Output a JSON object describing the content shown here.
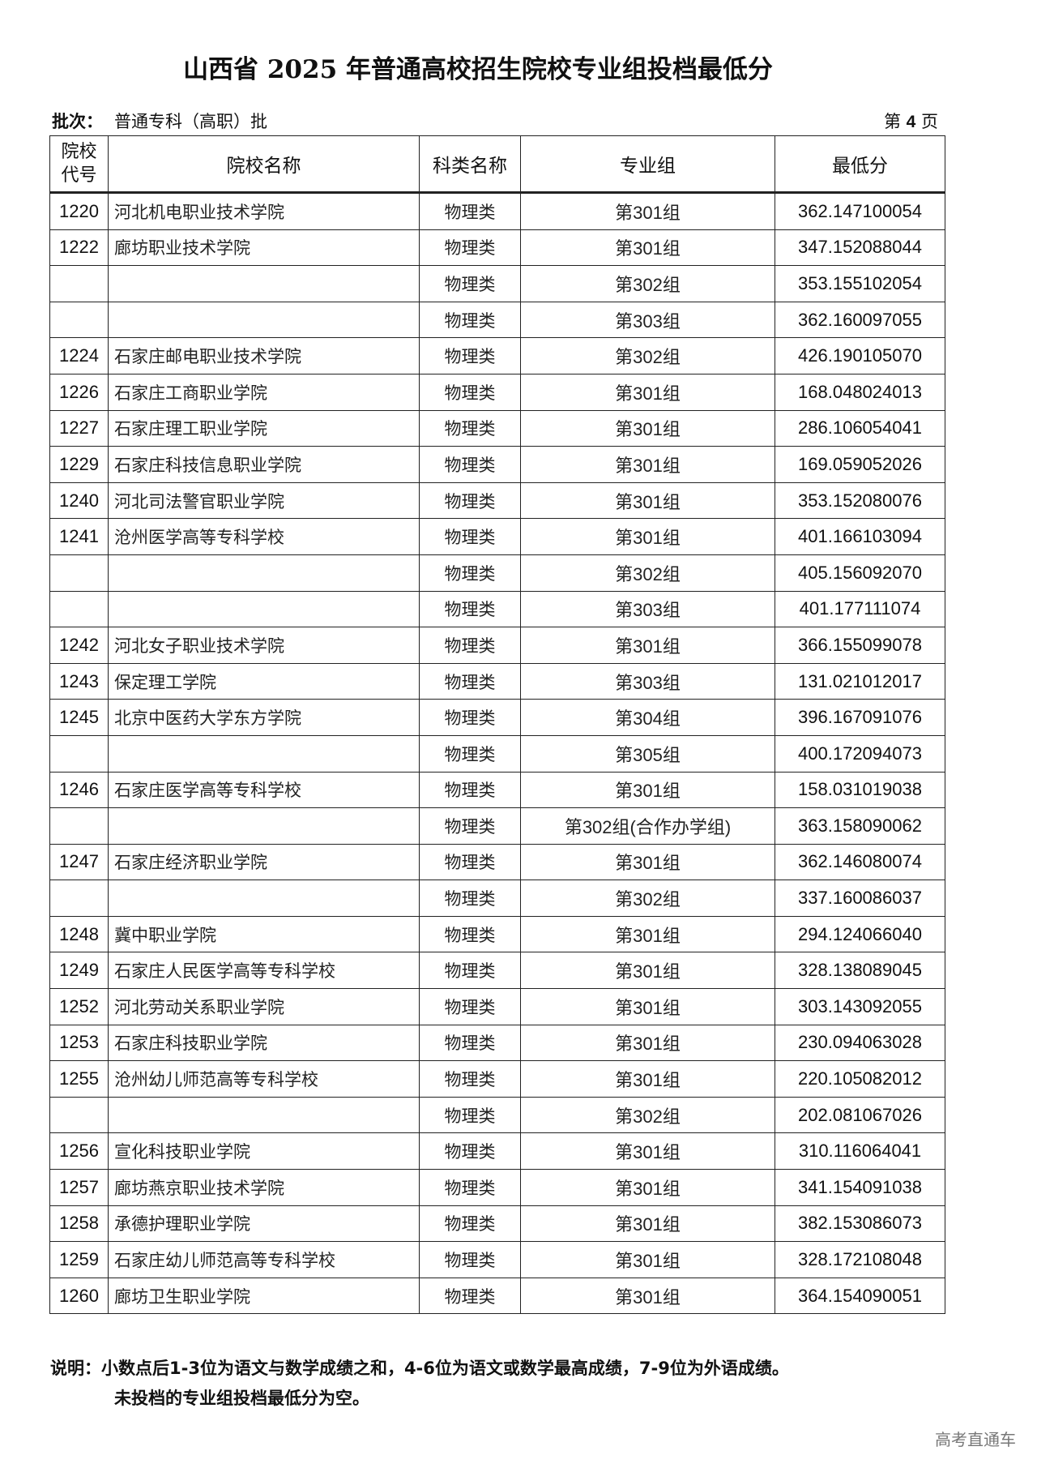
{
  "title": "山西省 2025 年普通高校招生院校专业组投档最低分",
  "batch": {
    "label": "批次：",
    "value": "普通专科（高职）批"
  },
  "page": {
    "prefix": "第",
    "number": "4",
    "suffix": "页"
  },
  "table": {
    "headers": {
      "code": "院校代号",
      "name": "院校名称",
      "category": "科类名称",
      "group": "专业组",
      "score": "最低分"
    },
    "rows": [
      {
        "code": "1220",
        "name": "河北机电职业技术学院",
        "category": "物理类",
        "group": "第301组",
        "score": "362.147100054"
      },
      {
        "code": "1222",
        "name": "廊坊职业技术学院",
        "category": "物理类",
        "group": "第301组",
        "score": "347.152088044"
      },
      {
        "code": "",
        "name": "",
        "category": "物理类",
        "group": "第302组",
        "score": "353.155102054"
      },
      {
        "code": "",
        "name": "",
        "category": "物理类",
        "group": "第303组",
        "score": "362.160097055"
      },
      {
        "code": "1224",
        "name": "石家庄邮电职业技术学院",
        "category": "物理类",
        "group": "第302组",
        "score": "426.190105070"
      },
      {
        "code": "1226",
        "name": "石家庄工商职业学院",
        "category": "物理类",
        "group": "第301组",
        "score": "168.048024013"
      },
      {
        "code": "1227",
        "name": "石家庄理工职业学院",
        "category": "物理类",
        "group": "第301组",
        "score": "286.106054041"
      },
      {
        "code": "1229",
        "name": "石家庄科技信息职业学院",
        "category": "物理类",
        "group": "第301组",
        "score": "169.059052026"
      },
      {
        "code": "1240",
        "name": "河北司法警官职业学院",
        "category": "物理类",
        "group": "第301组",
        "score": "353.152080076"
      },
      {
        "code": "1241",
        "name": "沧州医学高等专科学校",
        "category": "物理类",
        "group": "第301组",
        "score": "401.166103094"
      },
      {
        "code": "",
        "name": "",
        "category": "物理类",
        "group": "第302组",
        "score": "405.156092070"
      },
      {
        "code": "",
        "name": "",
        "category": "物理类",
        "group": "第303组",
        "score": "401.177111074"
      },
      {
        "code": "1242",
        "name": "河北女子职业技术学院",
        "category": "物理类",
        "group": "第301组",
        "score": "366.155099078"
      },
      {
        "code": "1243",
        "name": "保定理工学院",
        "category": "物理类",
        "group": "第303组",
        "score": "131.021012017"
      },
      {
        "code": "1245",
        "name": "北京中医药大学东方学院",
        "category": "物理类",
        "group": "第304组",
        "score": "396.167091076"
      },
      {
        "code": "",
        "name": "",
        "category": "物理类",
        "group": "第305组",
        "score": "400.172094073"
      },
      {
        "code": "1246",
        "name": "石家庄医学高等专科学校",
        "category": "物理类",
        "group": "第301组",
        "score": "158.031019038"
      },
      {
        "code": "",
        "name": "",
        "category": "物理类",
        "group": "第302组(合作办学组)",
        "score": "363.158090062"
      },
      {
        "code": "1247",
        "name": "石家庄经济职业学院",
        "category": "物理类",
        "group": "第301组",
        "score": "362.146080074"
      },
      {
        "code": "",
        "name": "",
        "category": "物理类",
        "group": "第302组",
        "score": "337.160086037"
      },
      {
        "code": "1248",
        "name": "冀中职业学院",
        "category": "物理类",
        "group": "第301组",
        "score": "294.124066040"
      },
      {
        "code": "1249",
        "name": "石家庄人民医学高等专科学校",
        "category": "物理类",
        "group": "第301组",
        "score": "328.138089045"
      },
      {
        "code": "1252",
        "name": "河北劳动关系职业学院",
        "category": "物理类",
        "group": "第301组",
        "score": "303.143092055"
      },
      {
        "code": "1253",
        "name": "石家庄科技职业学院",
        "category": "物理类",
        "group": "第301组",
        "score": "230.094063028"
      },
      {
        "code": "1255",
        "name": "沧州幼儿师范高等专科学校",
        "category": "物理类",
        "group": "第301组",
        "score": "220.105082012"
      },
      {
        "code": "",
        "name": "",
        "category": "物理类",
        "group": "第302组",
        "score": "202.081067026"
      },
      {
        "code": "1256",
        "name": "宣化科技职业学院",
        "category": "物理类",
        "group": "第301组",
        "score": "310.116064041"
      },
      {
        "code": "1257",
        "name": "廊坊燕京职业技术学院",
        "category": "物理类",
        "group": "第301组",
        "score": "341.154091038"
      },
      {
        "code": "1258",
        "name": "承德护理职业学院",
        "category": "物理类",
        "group": "第301组",
        "score": "382.153086073"
      },
      {
        "code": "1259",
        "name": "石家庄幼儿师范高等专科学校",
        "category": "物理类",
        "group": "第301组",
        "score": "328.172108048"
      },
      {
        "code": "1260",
        "name": "廊坊卫生职业学院",
        "category": "物理类",
        "group": "第301组",
        "score": "364.154090051"
      }
    ]
  },
  "note": {
    "line1": "说明：小数点后1-3位为语文与数学成绩之和，4-6位为语文或数学最高成绩，7-9位为外语成绩。",
    "line2": "未投档的专业组投档最低分为空。"
  },
  "watermark": "高考直通车"
}
